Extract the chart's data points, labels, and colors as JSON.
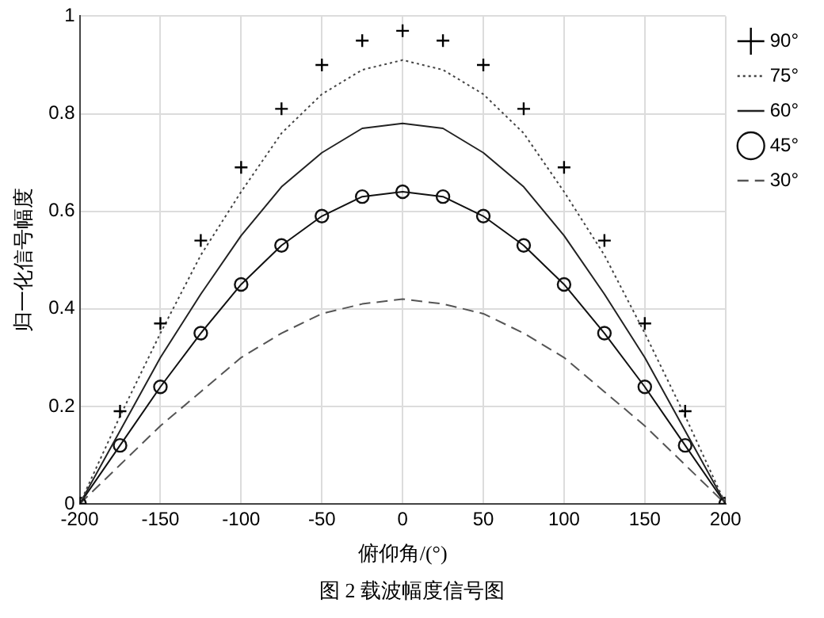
{
  "chart_data": {
    "type": "line",
    "xlabel": "俯仰角/(°)",
    "ylabel": "归一化信号幅度",
    "annotations": [
      "图 2  载波幅度信号图"
    ],
    "x": [
      -200,
      -175,
      -150,
      -125,
      -100,
      -75,
      -50,
      -25,
      0,
      25,
      50,
      75,
      100,
      125,
      150,
      175,
      200
    ],
    "series": [
      {
        "name": "90°",
        "type": "scatter",
        "color": "#000000",
        "marker": "cross",
        "values": [
          0,
          0.19,
          0.37,
          0.54,
          0.69,
          0.81,
          0.9,
          0.95,
          0.97,
          0.95,
          0.9,
          0.81,
          0.69,
          0.54,
          0.37,
          0.19,
          0
        ]
      },
      {
        "name": "75°",
        "color": "#444444",
        "marker": "none",
        "line_style": "dotted",
        "values": [
          0,
          0.18,
          0.35,
          0.51,
          0.64,
          0.76,
          0.84,
          0.89,
          0.91,
          0.89,
          0.84,
          0.76,
          0.64,
          0.51,
          0.35,
          0.18,
          0
        ]
      },
      {
        "name": "60°",
        "color": "#222222",
        "marker": "none",
        "line_style": "solid",
        "values": [
          0,
          0.15,
          0.3,
          0.43,
          0.55,
          0.65,
          0.72,
          0.77,
          0.78,
          0.77,
          0.72,
          0.65,
          0.55,
          0.43,
          0.3,
          0.15,
          0
        ]
      },
      {
        "name": "45°",
        "color": "#111111",
        "marker": "circle",
        "line_style": "solid",
        "values": [
          0,
          0.12,
          0.24,
          0.35,
          0.45,
          0.53,
          0.59,
          0.63,
          0.64,
          0.63,
          0.59,
          0.53,
          0.45,
          0.35,
          0.24,
          0.12,
          0
        ]
      },
      {
        "name": "30°",
        "color": "#555555",
        "marker": "none",
        "line_style": "dashed",
        "values": [
          0,
          0.08,
          0.16,
          0.23,
          0.3,
          0.35,
          0.39,
          0.41,
          0.42,
          0.41,
          0.39,
          0.35,
          0.3,
          0.23,
          0.16,
          0.08,
          0
        ]
      }
    ],
    "xlim": [
      -200,
      200
    ],
    "xticks": [
      -200,
      -150,
      -100,
      -50,
      0,
      50,
      100,
      150,
      200
    ],
    "ylim": [
      0,
      1
    ],
    "yticks": [
      0,
      0.2,
      0.4,
      0.6,
      0.8,
      1
    ],
    "grid": true,
    "legend": "top right"
  }
}
